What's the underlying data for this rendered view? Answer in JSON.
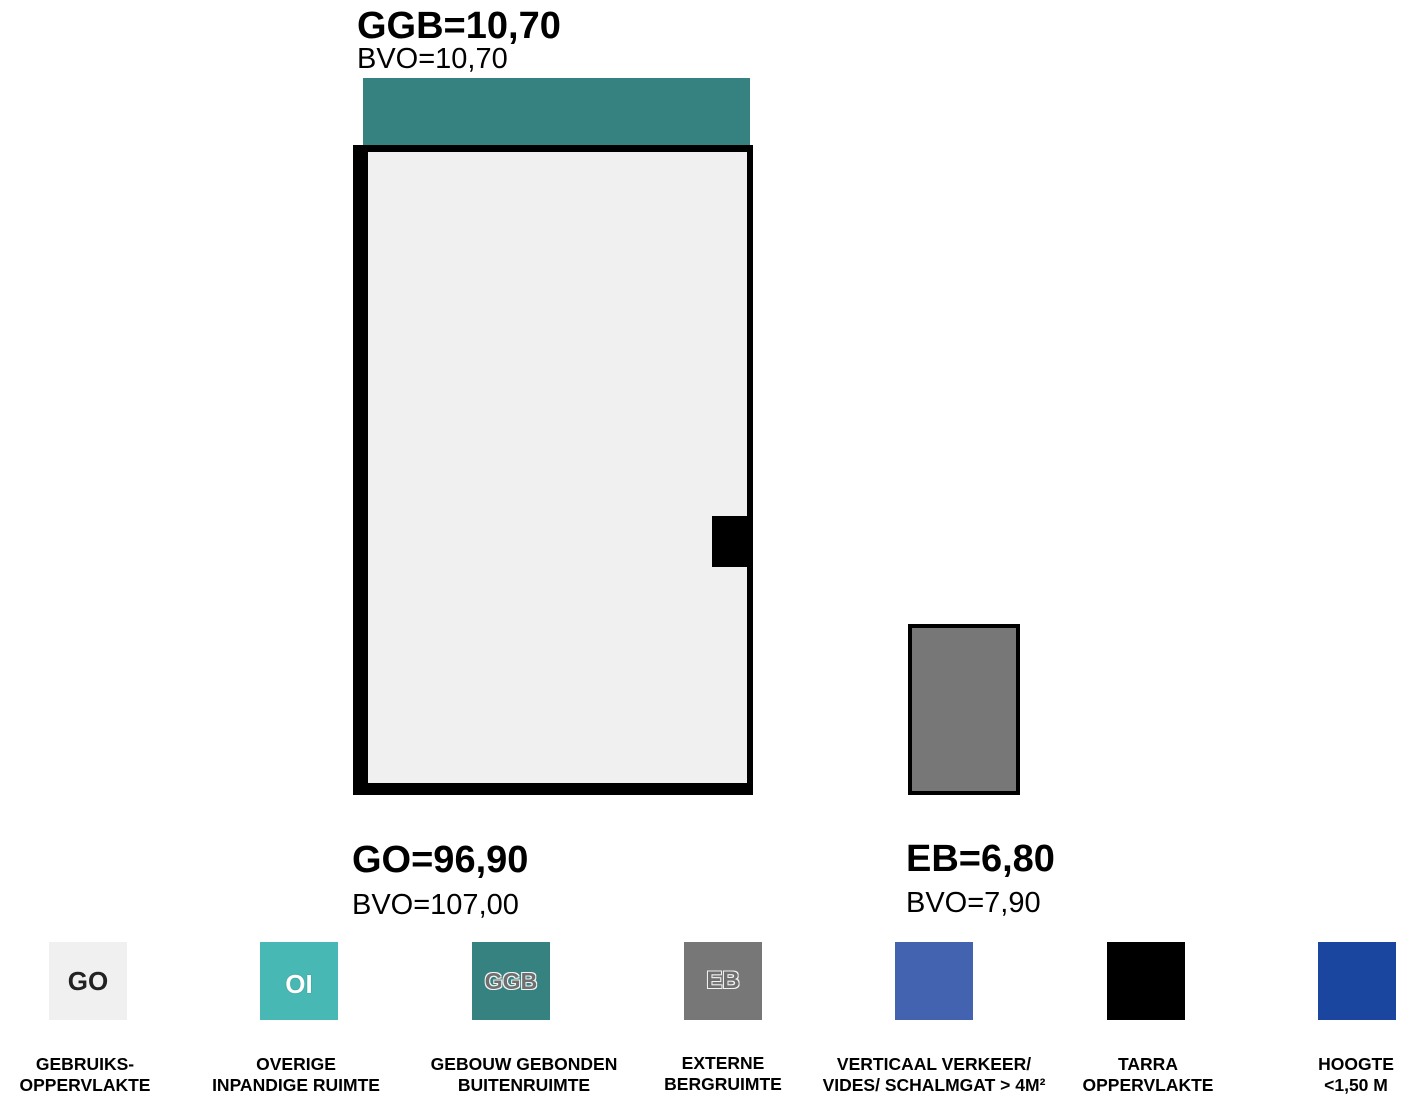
{
  "colors": {
    "go": "#f0f0f0",
    "oi": "#48b8b4",
    "ggb": "#358280",
    "eb": "#777777",
    "verticaal": "#4363b0",
    "tarra": "#000000",
    "hoogte": "#1a46a0"
  },
  "plan": {
    "ggb": {
      "title": "GGB=10,70",
      "bvo": "BVO=10,70"
    },
    "go": {
      "title": "GO=96,90",
      "bvo": "BVO=107,00"
    },
    "eb": {
      "title": "EB=6,80",
      "bvo": "BVO=7,90"
    }
  },
  "legend": [
    {
      "code": "GO",
      "line1": "GEBRUIKS-",
      "line2": "OPPERVLAKTE"
    },
    {
      "code": "OI",
      "line1": "OVERIGE",
      "line2": "INPANDIGE RUIMTE"
    },
    {
      "code": "GGB",
      "line1": "GEBOUW GEBONDEN",
      "line2": "BUITENRUIMTE"
    },
    {
      "code": "EB",
      "line1": "EXTERNE",
      "line2": "BERGRUIMTE"
    },
    {
      "code": "",
      "line1": "VERTICAAL VERKEER/",
      "line2": "VIDES/ SCHALMGAT > 4M²"
    },
    {
      "code": "",
      "line1": "TARRA",
      "line2": "OPPERVLAKTE"
    },
    {
      "code": "",
      "line1": "HOOGTE",
      "line2": "<1,50 M"
    }
  ]
}
